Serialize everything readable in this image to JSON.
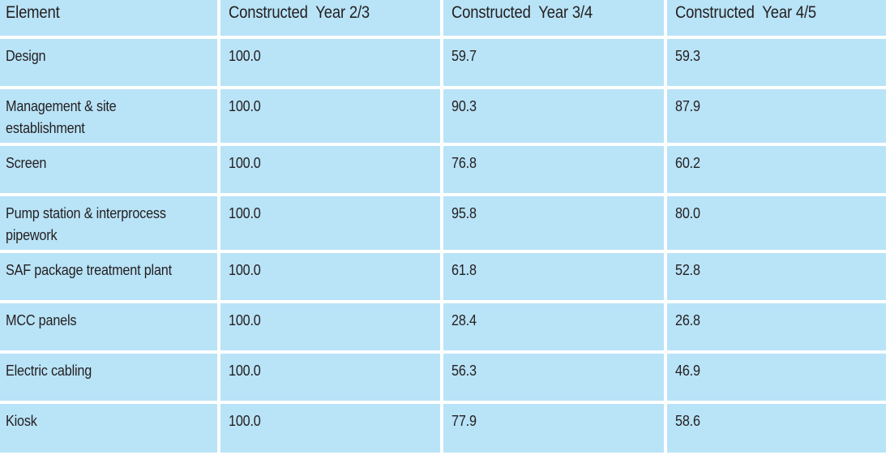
{
  "headers": [
    "Element",
    "Constructed  Year 2/3",
    "Constructed  Year 3/4",
    "Constructed  Year 4/5"
  ],
  "rows": [
    {
      "element": "Design",
      "y23": "100.0",
      "y34": "59.7",
      "y45": "59.3"
    },
    {
      "element": "Management & site establishment",
      "y23": "100.0",
      "y34": "90.3",
      "y45": "87.9"
    },
    {
      "element": "Screen",
      "y23": "100.0",
      "y34": "76.8",
      "y45": "60.2"
    },
    {
      "element": "Pump station & interprocess pipework",
      "y23": "100.0",
      "y34": "95.8",
      "y45": "80.0"
    },
    {
      "element": "SAF package treatment plant",
      "y23": "100.0",
      "y34": "61.8",
      "y45": "52.8"
    },
    {
      "element": "MCC panels",
      "y23": "100.0",
      "y34": "28.4",
      "y45": "26.8"
    },
    {
      "element": "Electric cabling",
      "y23": "100.0",
      "y34": "56.3",
      "y45": "46.9"
    },
    {
      "element": "Kiosk",
      "y23": "100.0",
      "y34": "77.9",
      "y45": "58.6"
    }
  ]
}
